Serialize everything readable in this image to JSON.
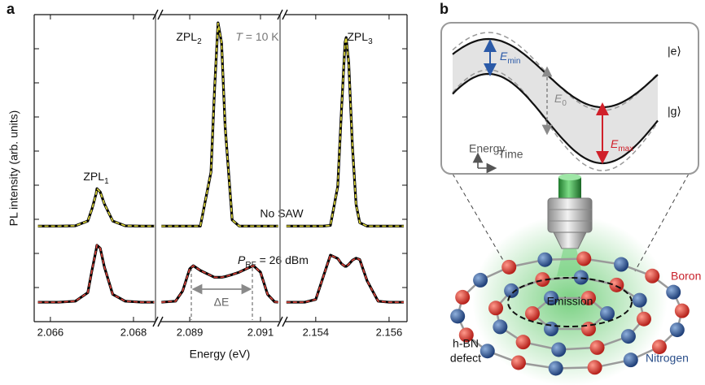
{
  "panel_labels": [
    "a",
    "b"
  ],
  "panel_a": {
    "xlabel": "Energy (eV)",
    "ylabel": "PL intensity (arb. units)",
    "zpl1": {
      "main": "ZPL",
      "sub": "1"
    },
    "zpl2": {
      "main": "ZPL",
      "sub": "2"
    },
    "zpl3": {
      "main": "ZPL",
      "sub": "3"
    },
    "temperature": {
      "main": "T",
      "rest": " = 10 K"
    },
    "no_saw": "No SAW",
    "rf_power": {
      "main": "P",
      "sub": "RF",
      "rest": " = 26 dBm"
    },
    "splitting": "ΔE"
  },
  "chart_data": [
    {
      "type": "line",
      "xlim": [
        2.06561,
        2.06851
      ],
      "xticks": [
        2.066,
        2.068
      ],
      "ylim": [
        0,
        9
      ],
      "yticks": [
        1,
        2,
        3,
        4,
        5,
        6,
        7,
        8
      ],
      "ytick_labels": false,
      "x": [
        2.0657,
        2.0662,
        2.0666,
        2.0669,
        2.067,
        2.0671,
        2.06712,
        2.0672,
        2.0673,
        2.0675,
        2.0678,
        2.0682,
        2.0685
      ],
      "series": [
        {
          "color": "#000000",
          "fit_color": "#e3dc3a",
          "values": [
            2.8,
            2.8,
            2.81,
            2.95,
            3.3,
            3.75,
            3.9,
            3.8,
            3.45,
            2.95,
            2.81,
            2.8,
            2.8
          ]
        },
        {
          "color": "#000000",
          "fit_color": "#e0453c",
          "values": [
            0.57,
            0.57,
            0.6,
            0.85,
            1.5,
            2.1,
            2.24,
            2.15,
            1.6,
            0.8,
            0.6,
            0.57,
            0.57
          ]
        }
      ]
    },
    {
      "type": "line",
      "xlim": [
        2.08817,
        2.09153
      ],
      "xticks": [
        2.089,
        2.091
      ],
      "ylim": [
        0,
        9
      ],
      "x": [
        2.0882,
        2.0886,
        2.0888,
        2.089,
        2.0891,
        2.0893,
        2.0896,
        2.0897,
        2.0898,
        2.0899,
        2.09,
        2.0902,
        2.0904,
        2.0906,
        2.0908,
        2.091,
        2.0912,
        2.0914,
        2.0915
      ],
      "series": [
        {
          "color": "#000000",
          "fit_color": "#e3dc3a",
          "values": [
            2.8,
            2.8,
            2.8,
            2.8,
            2.8,
            2.8,
            4.38,
            6.77,
            8.76,
            8.17,
            5.73,
            2.98,
            2.8,
            2.8,
            2.8,
            2.8,
            2.8,
            2.8,
            2.8
          ]
        },
        {
          "color": "#000000",
          "fit_color": "#e0453c",
          "values": [
            0.57,
            0.6,
            0.9,
            1.55,
            1.64,
            1.5,
            1.35,
            1.3,
            1.3,
            1.3,
            1.32,
            1.38,
            1.45,
            1.55,
            1.64,
            1.45,
            0.8,
            0.58,
            0.57
          ]
        }
      ]
    },
    {
      "type": "line",
      "xlim": [
        2.15316,
        2.15649
      ],
      "xticks": [
        2.154,
        2.156
      ],
      "ylim": [
        0,
        9
      ],
      "yticks": [
        1,
        2,
        3,
        4,
        5,
        6,
        7,
        8
      ],
      "ytick_labels": false,
      "x": [
        2.1532,
        2.1537,
        2.154,
        2.1542,
        2.1544,
        2.1546,
        2.1547,
        2.1548,
        2.15483,
        2.1549,
        2.155,
        2.1551,
        2.1552,
        2.1554,
        2.1557,
        2.156,
        2.1564
      ],
      "series": [
        {
          "color": "#000000",
          "fit_color": "#e3dc3a",
          "values": [
            2.8,
            2.8,
            2.8,
            2.8,
            2.82,
            3.96,
            6.16,
            8.19,
            8.33,
            7.58,
            5.15,
            3.44,
            2.9,
            2.8,
            2.8,
            2.8,
            2.8
          ]
        },
        {
          "color": "#000000",
          "fit_color": "#e0453c",
          "values": [
            0.57,
            0.57,
            0.65,
            1.3,
            1.95,
            1.85,
            1.7,
            1.62,
            1.62,
            1.68,
            1.8,
            1.86,
            1.82,
            1.2,
            0.6,
            0.57,
            0.57
          ]
        }
      ]
    }
  ],
  "panel_b": {
    "excited_state": "|e⟩",
    "ground_state": "|g⟩",
    "e_min": {
      "main": "E",
      "sub": "min"
    },
    "e_0": {
      "main": "E",
      "sub": "0"
    },
    "e_max": {
      "main": "E",
      "sub": "max"
    },
    "energy_axis": "Energy",
    "time_axis": "Time",
    "emission": "Emission",
    "boron": "Boron",
    "nitrogen": "Nitrogen",
    "defect": [
      "h-BN",
      "defect"
    ]
  }
}
